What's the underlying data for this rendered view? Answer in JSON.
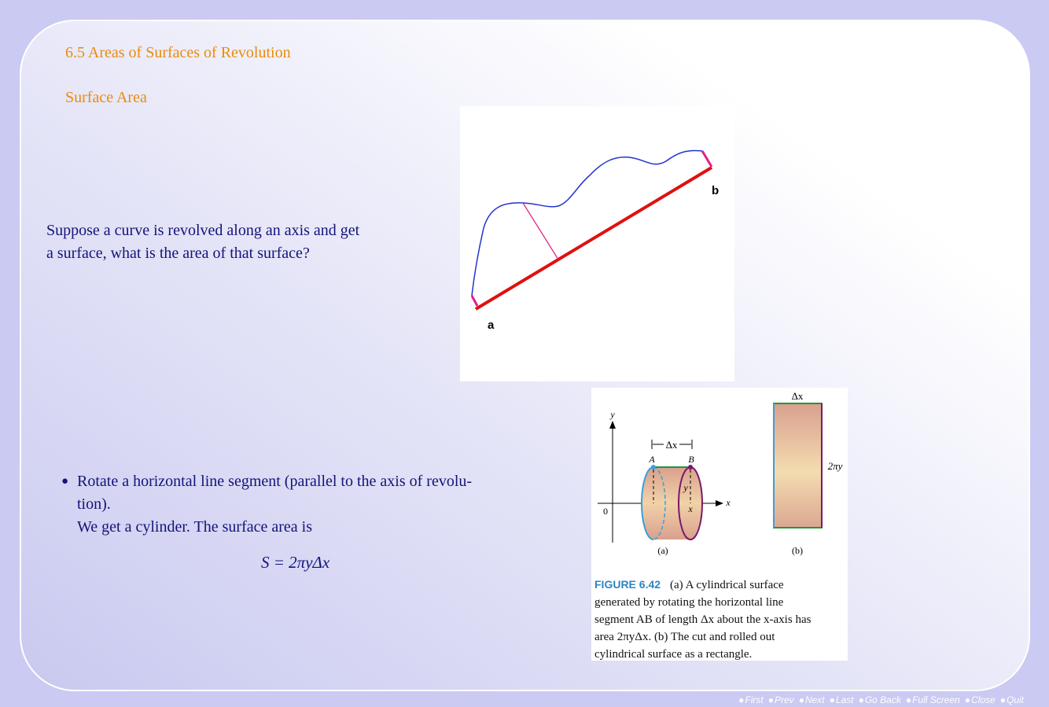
{
  "header": {
    "title": "6.5 Areas of Surfaces of Revolution",
    "subtitle": "Surface Area"
  },
  "intro": {
    "lines": [
      "Suppose a curve is revolved along an axis and get",
      "a surface, what is the area of that surface?"
    ]
  },
  "figure1": {
    "labels": [
      "a",
      "b"
    ]
  },
  "bullet": {
    "lines": [
      "Rotate a horizontal line segment (parallel to the axis of revolu-",
      "tion).",
      "We get a cylinder. The surface area is"
    ],
    "formula": "S = 2πyΔx"
  },
  "figure2": {
    "labels": {
      "y_axis": "y",
      "x_axis": "x",
      "origin": "0",
      "point_a": "A",
      "point_b": "B",
      "dx_top": "Δx",
      "height": "y",
      "x_foot": "x",
      "part_a": "(a)",
      "dx_rect": "Δx",
      "circumference": "2πy",
      "part_b": "(b)"
    },
    "caption_label": "FIGURE 6.42",
    "caption_lines": [
      "(a) A cylindrical surface",
      "generated by rotating the horizontal line",
      "segment AB of length Δx about the x-axis has",
      "area 2πyΔx. (b) The cut and rolled out",
      "cylindrical surface as a rectangle."
    ]
  },
  "navigation": {
    "buttons": [
      "First",
      "Prev",
      "Next",
      "Last",
      "Go Back",
      "Full Screen",
      "Close",
      "Quit"
    ]
  }
}
